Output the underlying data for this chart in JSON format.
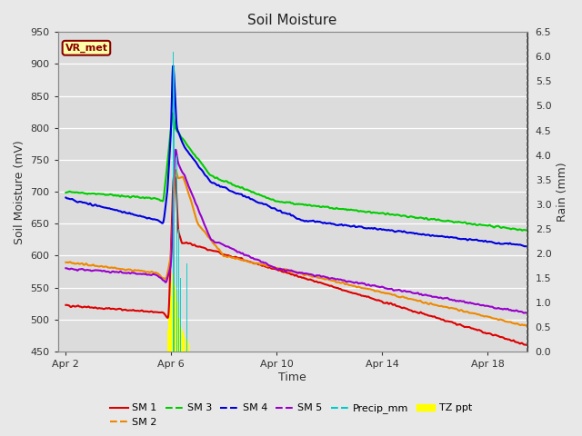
{
  "title": "Soil Moisture",
  "xlabel": "Time",
  "ylabel_left": "Soil Moisture (mV)",
  "ylabel_right": "Rain (mm)",
  "ylim_left": [
    450,
    950
  ],
  "ylim_right": [
    0.0,
    6.5
  ],
  "bg_color": "#e8e8e8",
  "plot_bg_color": "#dcdcdc",
  "line_colors": {
    "SM1": "#dd0000",
    "SM2": "#ee8800",
    "SM3": "#00cc00",
    "SM4": "#0000dd",
    "SM5": "#9900cc",
    "Precip_mm": "#00cccc",
    "TZ_ppt": "#ffff00"
  },
  "annotation_text": "VR_met",
  "annotation_color": "#880000",
  "annotation_bg": "#ffffaa",
  "xtick_labels": [
    "Apr 2",
    "Apr 6",
    "Apr 10",
    "Apr 14",
    "Apr 18"
  ],
  "legend_labels": [
    "SM 1",
    "SM 2",
    "SM 3",
    "SM 4",
    "SM 5",
    "Precip_mm",
    "TZ ppt"
  ]
}
